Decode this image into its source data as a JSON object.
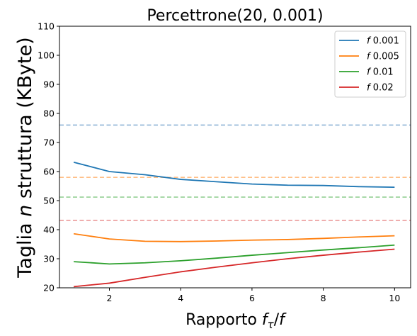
{
  "chart_data": {
    "type": "line",
    "title": "Percettrone(20, 0.001)",
    "xlabel_parts": [
      "Rapporto ",
      "f",
      "τ",
      "/",
      "f"
    ],
    "ylabel_parts": [
      "Taglia ",
      "n",
      " struttura (KByte)"
    ],
    "xlim": [
      0.6,
      10.45
    ],
    "ylim": [
      20,
      110
    ],
    "xticks": [
      2,
      4,
      6,
      8,
      10
    ],
    "yticks": [
      20,
      30,
      40,
      50,
      60,
      70,
      80,
      90,
      100,
      110
    ],
    "x": [
      1,
      2,
      3,
      4,
      5,
      6,
      7,
      8,
      9,
      10
    ],
    "series": [
      {
        "name": "f 0.001",
        "label_f": "f",
        "label_val": "0.001",
        "color": "#1f77b4",
        "values": [
          63.2,
          60.0,
          58.9,
          57.3,
          56.5,
          55.7,
          55.3,
          55.2,
          54.8,
          54.6
        ]
      },
      {
        "name": "f 0.005",
        "label_f": "f",
        "label_val": "0.005",
        "color": "#ff7f0e",
        "values": [
          38.6,
          36.8,
          36.0,
          35.9,
          36.1,
          36.4,
          36.6,
          37.0,
          37.5,
          37.9
        ]
      },
      {
        "name": "f 0.01",
        "label_f": "f",
        "label_val": "0.01",
        "color": "#2ca02c",
        "values": [
          29.0,
          28.2,
          28.6,
          29.3,
          30.2,
          31.2,
          32.1,
          33.0,
          33.8,
          34.7
        ]
      },
      {
        "name": "f 0.02",
        "label_f": "f",
        "label_val": "0.02",
        "color": "#d62728",
        "values": [
          20.4,
          21.6,
          23.6,
          25.5,
          27.1,
          28.6,
          30.0,
          31.2,
          32.3,
          33.3
        ]
      }
    ],
    "reference_lines": [
      {
        "y": 76.0,
        "color": "#8fb4d6"
      },
      {
        "y": 58.0,
        "color": "#ffbf86"
      },
      {
        "y": 51.2,
        "color": "#95d095"
      },
      {
        "y": 43.2,
        "color": "#ea9191"
      }
    ],
    "legend_placement": "top-right",
    "grid": false
  }
}
